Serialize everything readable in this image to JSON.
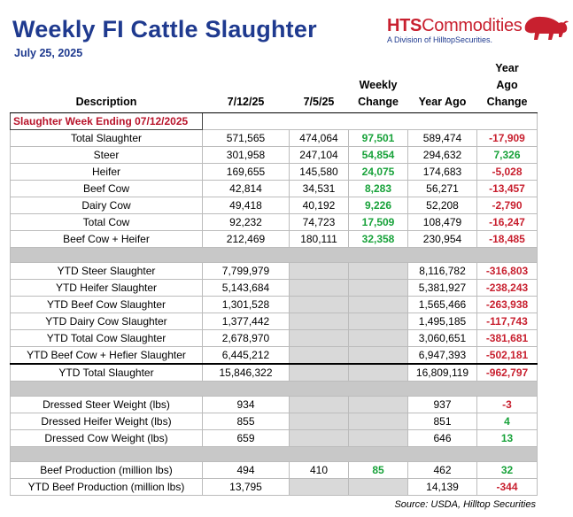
{
  "header": {
    "title": "Weekly FI Cattle Slaughter",
    "date": "July 25, 2025",
    "logo_name_bold": "HTS",
    "logo_name_rest": "Commodities",
    "logo_tagline": "A Division of HilltopSecurities."
  },
  "columns": [
    "Description",
    "7/12/25",
    "7/5/25",
    "Weekly Change",
    "Year Ago",
    "Year Ago Change"
  ],
  "section_label": "Slaughter Week Ending 07/12/2025",
  "weekly_rows": [
    {
      "desc": "Total Slaughter",
      "cur": "571,565",
      "prev": "474,064",
      "wk": "97,501",
      "ya": "589,474",
      "yac": "-17,909"
    },
    {
      "desc": "Steer",
      "cur": "301,958",
      "prev": "247,104",
      "wk": "54,854",
      "ya": "294,632",
      "yac": "7,326"
    },
    {
      "desc": "Heifer",
      "cur": "169,655",
      "prev": "145,580",
      "wk": "24,075",
      "ya": "174,683",
      "yac": "-5,028"
    },
    {
      "desc": "Beef Cow",
      "cur": "42,814",
      "prev": "34,531",
      "wk": "8,283",
      "ya": "56,271",
      "yac": "-13,457"
    },
    {
      "desc": "Dairy Cow",
      "cur": "49,418",
      "prev": "40,192",
      "wk": "9,226",
      "ya": "52,208",
      "yac": "-2,790"
    },
    {
      "desc": "Total Cow",
      "cur": "92,232",
      "prev": "74,723",
      "wk": "17,509",
      "ya": "108,479",
      "yac": "-16,247"
    },
    {
      "desc": "Beef Cow + Heifer",
      "cur": "212,469",
      "prev": "180,111",
      "wk": "32,358",
      "ya": "230,954",
      "yac": "-18,485"
    }
  ],
  "ytd_rows": [
    {
      "desc": "YTD Steer Slaughter",
      "cur": "7,799,979",
      "ya": "8,116,782",
      "yac": "-316,803"
    },
    {
      "desc": "YTD Heifer Slaughter",
      "cur": "5,143,684",
      "ya": "5,381,927",
      "yac": "-238,243"
    },
    {
      "desc": "YTD Beef Cow Slaughter",
      "cur": "1,301,528",
      "ya": "1,565,466",
      "yac": "-263,938"
    },
    {
      "desc": "YTD Dairy Cow Slaughter",
      "cur": "1,377,442",
      "ya": "1,495,185",
      "yac": "-117,743"
    },
    {
      "desc": "YTD Total Cow Slaughter",
      "cur": "2,678,970",
      "ya": "3,060,651",
      "yac": "-381,681"
    },
    {
      "desc": "YTD Beef Cow + Hefier Slaughter",
      "cur": "6,445,212",
      "ya": "6,947,393",
      "yac": "-502,181"
    },
    {
      "desc": "YTD Total Slaughter",
      "cur": "15,846,322",
      "ya": "16,809,119",
      "yac": "-962,797"
    }
  ],
  "weight_rows": [
    {
      "desc": "Dressed Steer Weight (lbs)",
      "cur": "934",
      "ya": "937",
      "yac": "-3"
    },
    {
      "desc": "Dressed Heifer Weight (lbs)",
      "cur": "855",
      "ya": "851",
      "yac": "4"
    },
    {
      "desc": "Dressed Cow Weight (lbs)",
      "cur": "659",
      "ya": "646",
      "yac": "13"
    }
  ],
  "production_rows": [
    {
      "desc": "Beef Production (million lbs)",
      "cur": "494",
      "prev": "410",
      "wk": "85",
      "ya": "462",
      "yac": "32"
    },
    {
      "desc": "YTD Beef Production (million lbs)",
      "cur": "13,795",
      "prev": "",
      "wk": "",
      "ya": "14,139",
      "yac": "-344"
    }
  ],
  "source": "Source: USDA, Hilltop Securities",
  "colors": {
    "title": "#1f3a8f",
    "positive": "#18a23a",
    "negative": "#c8202f",
    "divider": "#c8c8c8"
  }
}
